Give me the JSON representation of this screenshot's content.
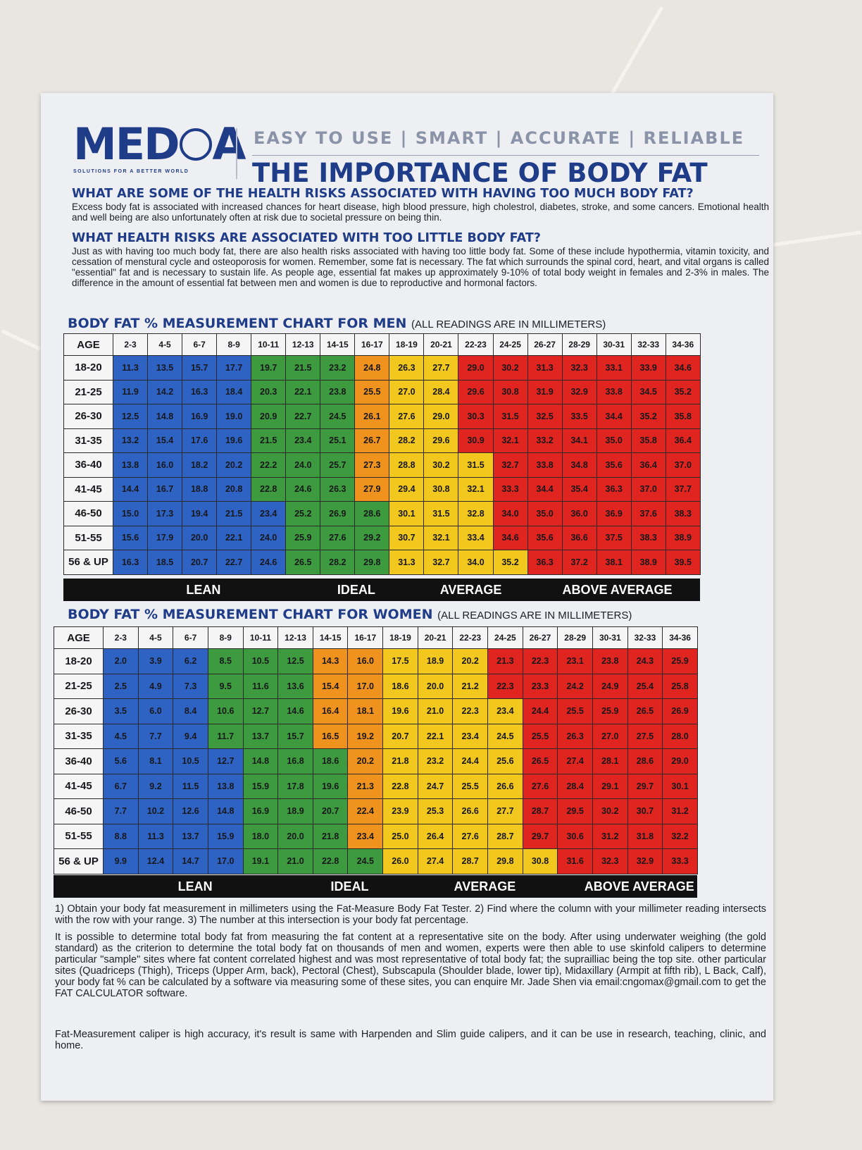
{
  "header": {
    "logo": "MEDCA",
    "logo_tagline": "SOLUTIONS FOR A BETTER WORLD",
    "tagline": "EASY TO USE | SMART | ACCURATE | RELIABLE",
    "title": "THE IMPORTANCE OF BODY FAT"
  },
  "section1": {
    "heading": "WHAT ARE SOME OF THE HEALTH RISKS ASSOCIATED WITH HAVING TOO MUCH BODY FAT?",
    "text": "Excess body fat is associated with increased chances for heart disease, high blood pressure, high cholestrol, diabetes, stroke, and some cancers. Emotional health and well being are also unfortunately often at risk due to societal pressure on being thin."
  },
  "section2": {
    "heading": "WHAT HEALTH RISKS ARE ASSOCIATED WITH TOO LITTLE BODY FAT?",
    "text": "Just as with having too much body fat, there are also health risks associated with having too little body fat. Some of these include hypothermia, vitamin toxicity, and cessation of menstural cycle and osteoporosis for women. Remember, some fat is necessary. The fat which surrounds the spinal cord, heart, and vital organs is called \"essential\" fat and is necessary to sustain life. As people age, essential fat makes up approximately 9-10% of total body weight in females and 2-3% in males. The difference in the amount of essential fat between men and women is due to reproductive and hormonal factors."
  },
  "colors": {
    "brand": "#1f3c88",
    "lean": "#2e63c4",
    "ideal": "#3d9a3f",
    "average": "#f2c81e",
    "orange": "#f0921e",
    "above": "#e0241f"
  },
  "columns": [
    "2-3",
    "4-5",
    "6-7",
    "8-9",
    "10-11",
    "12-13",
    "14-15",
    "16-17",
    "18-19",
    "20-21",
    "22-23",
    "24-25",
    "26-27",
    "28-29",
    "30-31",
    "32-33",
    "34-36"
  ],
  "ages": [
    "18-20",
    "21-25",
    "26-30",
    "31-35",
    "36-40",
    "41-45",
    "46-50",
    "51-55",
    "56 & UP"
  ],
  "men": {
    "title": "BODY FAT % MEASUREMENT CHART FOR MEN",
    "note": "(ALL READINGS ARE IN MILLIMETERS)",
    "age_header": "AGE",
    "rows": [
      [
        "11.3",
        "13.5",
        "15.7",
        "17.7",
        "19.7",
        "21.5",
        "23.2",
        "24.8",
        "26.3",
        "27.7",
        "29.0",
        "30.2",
        "31.3",
        "32.3",
        "33.1",
        "33.9",
        "34.6"
      ],
      [
        "11.9",
        "14.2",
        "16.3",
        "18.4",
        "20.3",
        "22.1",
        "23.8",
        "25.5",
        "27.0",
        "28.4",
        "29.6",
        "30.8",
        "31.9",
        "32.9",
        "33.8",
        "34.5",
        "35.2"
      ],
      [
        "12.5",
        "14.8",
        "16.9",
        "19.0",
        "20.9",
        "22.7",
        "24.5",
        "26.1",
        "27.6",
        "29.0",
        "30.3",
        "31.5",
        "32.5",
        "33.5",
        "34.4",
        "35.2",
        "35.8"
      ],
      [
        "13.2",
        "15.4",
        "17.6",
        "19.6",
        "21.5",
        "23.4",
        "25.1",
        "26.7",
        "28.2",
        "29.6",
        "30.9",
        "32.1",
        "33.2",
        "34.1",
        "35.0",
        "35.8",
        "36.4"
      ],
      [
        "13.8",
        "16.0",
        "18.2",
        "20.2",
        "22.2",
        "24.0",
        "25.7",
        "27.3",
        "28.8",
        "30.2",
        "31.5",
        "32.7",
        "33.8",
        "34.8",
        "35.6",
        "36.4",
        "37.0"
      ],
      [
        "14.4",
        "16.7",
        "18.8",
        "20.8",
        "22.8",
        "24.6",
        "26.3",
        "27.9",
        "29.4",
        "30.8",
        "32.1",
        "33.3",
        "34.4",
        "35.4",
        "36.3",
        "37.0",
        "37.7"
      ],
      [
        "15.0",
        "17.3",
        "19.4",
        "21.5",
        "23.4",
        "25.2",
        "26.9",
        "28.6",
        "30.1",
        "31.5",
        "32.8",
        "34.0",
        "35.0",
        "36.0",
        "36.9",
        "37.6",
        "38.3"
      ],
      [
        "15.6",
        "17.9",
        "20.0",
        "22.1",
        "24.0",
        "25.9",
        "27.6",
        "29.2",
        "30.7",
        "32.1",
        "33.4",
        "34.6",
        "35.6",
        "36.6",
        "37.5",
        "38.3",
        "38.9"
      ],
      [
        "16.3",
        "18.5",
        "20.7",
        "22.7",
        "24.6",
        "26.5",
        "28.2",
        "29.8",
        "31.3",
        "32.7",
        "34.0",
        "35.2",
        "36.3",
        "37.2",
        "38.1",
        "38.9",
        "39.5"
      ]
    ],
    "legend": [
      "LEAN",
      "IDEAL",
      "AVERAGE",
      "ABOVE AVERAGE"
    ]
  },
  "women": {
    "title": "BODY FAT % MEASUREMENT CHART FOR WOMEN",
    "note": "(ALL READINGS ARE IN MILLIMETERS)",
    "age_header": "AGE",
    "rows": [
      [
        "2.0",
        "3.9",
        "6.2",
        "8.5",
        "10.5",
        "12.5",
        "14.3",
        "16.0",
        "17.5",
        "18.9",
        "20.2",
        "21.3",
        "22.3",
        "23.1",
        "23.8",
        "24.3",
        "25.9"
      ],
      [
        "2.5",
        "4.9",
        "7.3",
        "9.5",
        "11.6",
        "13.6",
        "15.4",
        "17.0",
        "18.6",
        "20.0",
        "21.2",
        "22.3",
        "23.3",
        "24.2",
        "24.9",
        "25.4",
        "25.8"
      ],
      [
        "3.5",
        "6.0",
        "8.4",
        "10.6",
        "12.7",
        "14.6",
        "16.4",
        "18.1",
        "19.6",
        "21.0",
        "22.3",
        "23.4",
        "24.4",
        "25.5",
        "25.9",
        "26.5",
        "26.9"
      ],
      [
        "4.5",
        "7.7",
        "9.4",
        "11.7",
        "13.7",
        "15.7",
        "16.5",
        "19.2",
        "20.7",
        "22.1",
        "23.4",
        "24.5",
        "25.5",
        "26.3",
        "27.0",
        "27.5",
        "28.0"
      ],
      [
        "5.6",
        "8.1",
        "10.5",
        "12.7",
        "14.8",
        "16.8",
        "18.6",
        "20.2",
        "21.8",
        "23.2",
        "24.4",
        "25.6",
        "26.5",
        "27.4",
        "28.1",
        "28.6",
        "29.0"
      ],
      [
        "6.7",
        "9.2",
        "11.5",
        "13.8",
        "15.9",
        "17.8",
        "19.6",
        "21.3",
        "22.8",
        "24.7",
        "25.5",
        "26.6",
        "27.6",
        "28.4",
        "29.1",
        "29.7",
        "30.1"
      ],
      [
        "7.7",
        "10.2",
        "12.6",
        "14.8",
        "16.9",
        "18.9",
        "20.7",
        "22.4",
        "23.9",
        "25.3",
        "26.6",
        "27.7",
        "28.7",
        "29.5",
        "30.2",
        "30.7",
        "31.2"
      ],
      [
        "8.8",
        "11.3",
        "13.7",
        "15.9",
        "18.0",
        "20.0",
        "21.8",
        "23.4",
        "25.0",
        "26.4",
        "27.6",
        "28.7",
        "29.7",
        "30.6",
        "31.2",
        "31.8",
        "32.2"
      ],
      [
        "9.9",
        "12.4",
        "14.7",
        "17.0",
        "19.1",
        "21.0",
        "22.8",
        "24.5",
        "26.0",
        "27.4",
        "28.7",
        "29.8",
        "30.8",
        "31.6",
        "32.3",
        "32.9",
        "33.3"
      ]
    ],
    "legend": [
      "LEAN",
      "IDEAL",
      "AVERAGE",
      "ABOVE AVERAGE"
    ]
  },
  "footer": {
    "instructions": "1) Obtain your body fat measurement in millimeters using the Fat-Measure Body Fat Tester. 2) Find where the column with your millimeter reading intersects with the row with your range. 3) The number at this intersection is your body fat percentage.",
    "explanation": "It is possible to determine total body fat from measuring the fat content at a representative site on the body. After using underwater weighing (the gold standard) as the criterion to determine the total body fat on thousands of men and women, experts were then able to use skinfold calipers to determine particular \"sample\" sites where fat content correlated highest and was most representative of total body fat; the suprailliac being the top site. other particular sites (Quadriceps (Thigh), Triceps (Upper Arm, back), Pectoral (Chest), Subscapula (Shoulder blade, lower tip), Midaxillary (Armpit at fifth rib), L Back, Calf), your body fat % can be calculated by a software via measuring some of these sites, you can enquire Mr. Jade Shen via email:cngomax@gmail.com to get the FAT CALCULATOR software.",
    "caliper_note": "Fat-Measurement caliper is high accuracy, it's result is same with Harpenden and Slim guide calipers, and it can be use in research, teaching, clinic, and home."
  }
}
